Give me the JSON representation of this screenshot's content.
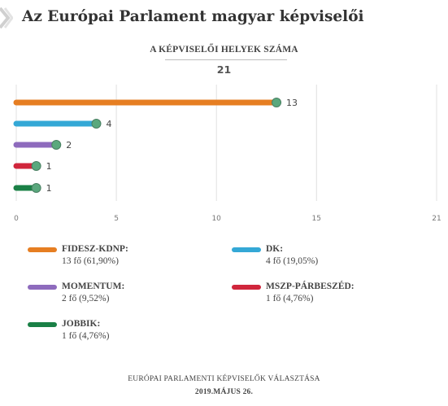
{
  "header": {
    "title": "Az Európai Parlament magyar képviselői"
  },
  "chart": {
    "subtitle": "A KÉPVISELŐI HELYEK SZÁMA",
    "total": "21"
  },
  "chart_data": {
    "type": "bar",
    "orientation": "horizontal",
    "title": "A KÉPVISELŐI HELYEK SZÁMA",
    "xlim": [
      0,
      21
    ],
    "xticks": [
      "0",
      "5",
      "10",
      "15",
      "21"
    ],
    "grid": true,
    "legend_position": "bottom",
    "series": [
      {
        "name": "FIDESZ-KDNP:",
        "value": 13,
        "label": "13",
        "color": "#e67e22",
        "detail": "13 fő (61,90%)"
      },
      {
        "name": "DK:",
        "value": 4,
        "label": "4",
        "color": "#34a8d6",
        "detail": "4 fő (19,05%)"
      },
      {
        "name": "MOMENTUM:",
        "value": 2,
        "label": "2",
        "color": "#8e6bbd",
        "detail": "2 fő (9,52%)"
      },
      {
        "name": "MSZP-PÁRBESZÉD:",
        "value": 1,
        "label": "1",
        "color": "#d0263c",
        "detail": "1 fő (4,76%)"
      },
      {
        "name": "JOBBIK:",
        "value": 1,
        "label": "1",
        "color": "#1a8046",
        "detail": "1 fő (4,76%)"
      }
    ]
  },
  "footer": {
    "line1": "EURÓPAI PARLAMENTI KÉPVISELŐK VÁLASZTÁSA",
    "line2": "2019.MÁJUS 26."
  },
  "icons": {
    "header": "chevron-right-icon"
  }
}
